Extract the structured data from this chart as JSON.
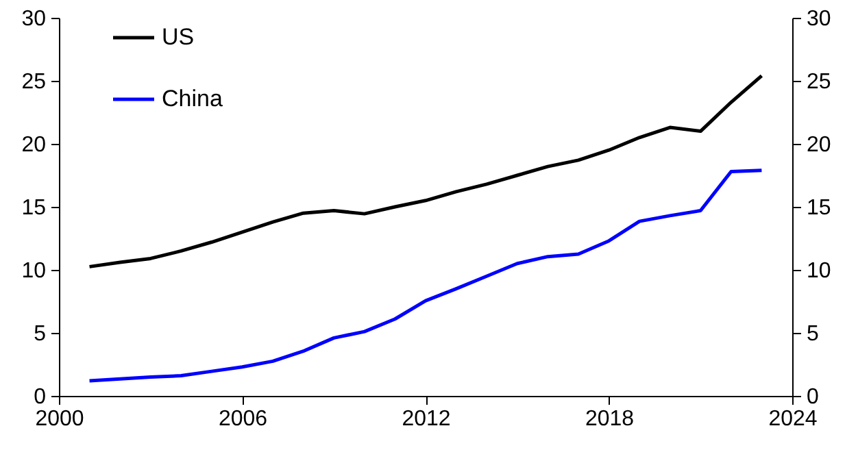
{
  "chart_data": {
    "type": "line",
    "x": [
      2001,
      2002,
      2003,
      2004,
      2005,
      2006,
      2007,
      2008,
      2009,
      2010,
      2011,
      2012,
      2013,
      2014,
      2015,
      2016,
      2017,
      2018,
      2019,
      2020,
      2021,
      2022,
      2023
    ],
    "series": [
      {
        "name": "US",
        "color": "#000000",
        "values": [
          10.25,
          10.6,
          10.9,
          11.5,
          12.2,
          13.0,
          13.8,
          14.5,
          14.7,
          14.45,
          15.0,
          15.5,
          16.2,
          16.8,
          17.5,
          18.2,
          18.7,
          19.5,
          20.5,
          21.3,
          21.0,
          23.3,
          25.4
        ]
      },
      {
        "name": "China",
        "color": "#0000ff",
        "values": [
          1.2,
          1.35,
          1.5,
          1.6,
          1.95,
          2.3,
          2.75,
          3.55,
          4.6,
          5.1,
          6.1,
          7.55,
          8.5,
          9.5,
          10.5,
          11.05,
          11.25,
          12.3,
          13.85,
          14.3,
          14.7,
          17.8,
          17.9
        ]
      }
    ],
    "xlim": [
      2000,
      2024
    ],
    "xticks": [
      2000,
      2006,
      2012,
      2018,
      2024
    ],
    "ylim": [
      0,
      30
    ],
    "yticks": [
      0,
      5,
      10,
      15,
      20,
      25,
      30
    ],
    "y2lim": [
      0,
      30
    ],
    "y2ticks": [
      0,
      5,
      10,
      15,
      20,
      25,
      30
    ],
    "grid": false,
    "legend": "top left",
    "marker": "none",
    "line_style": "solid"
  }
}
